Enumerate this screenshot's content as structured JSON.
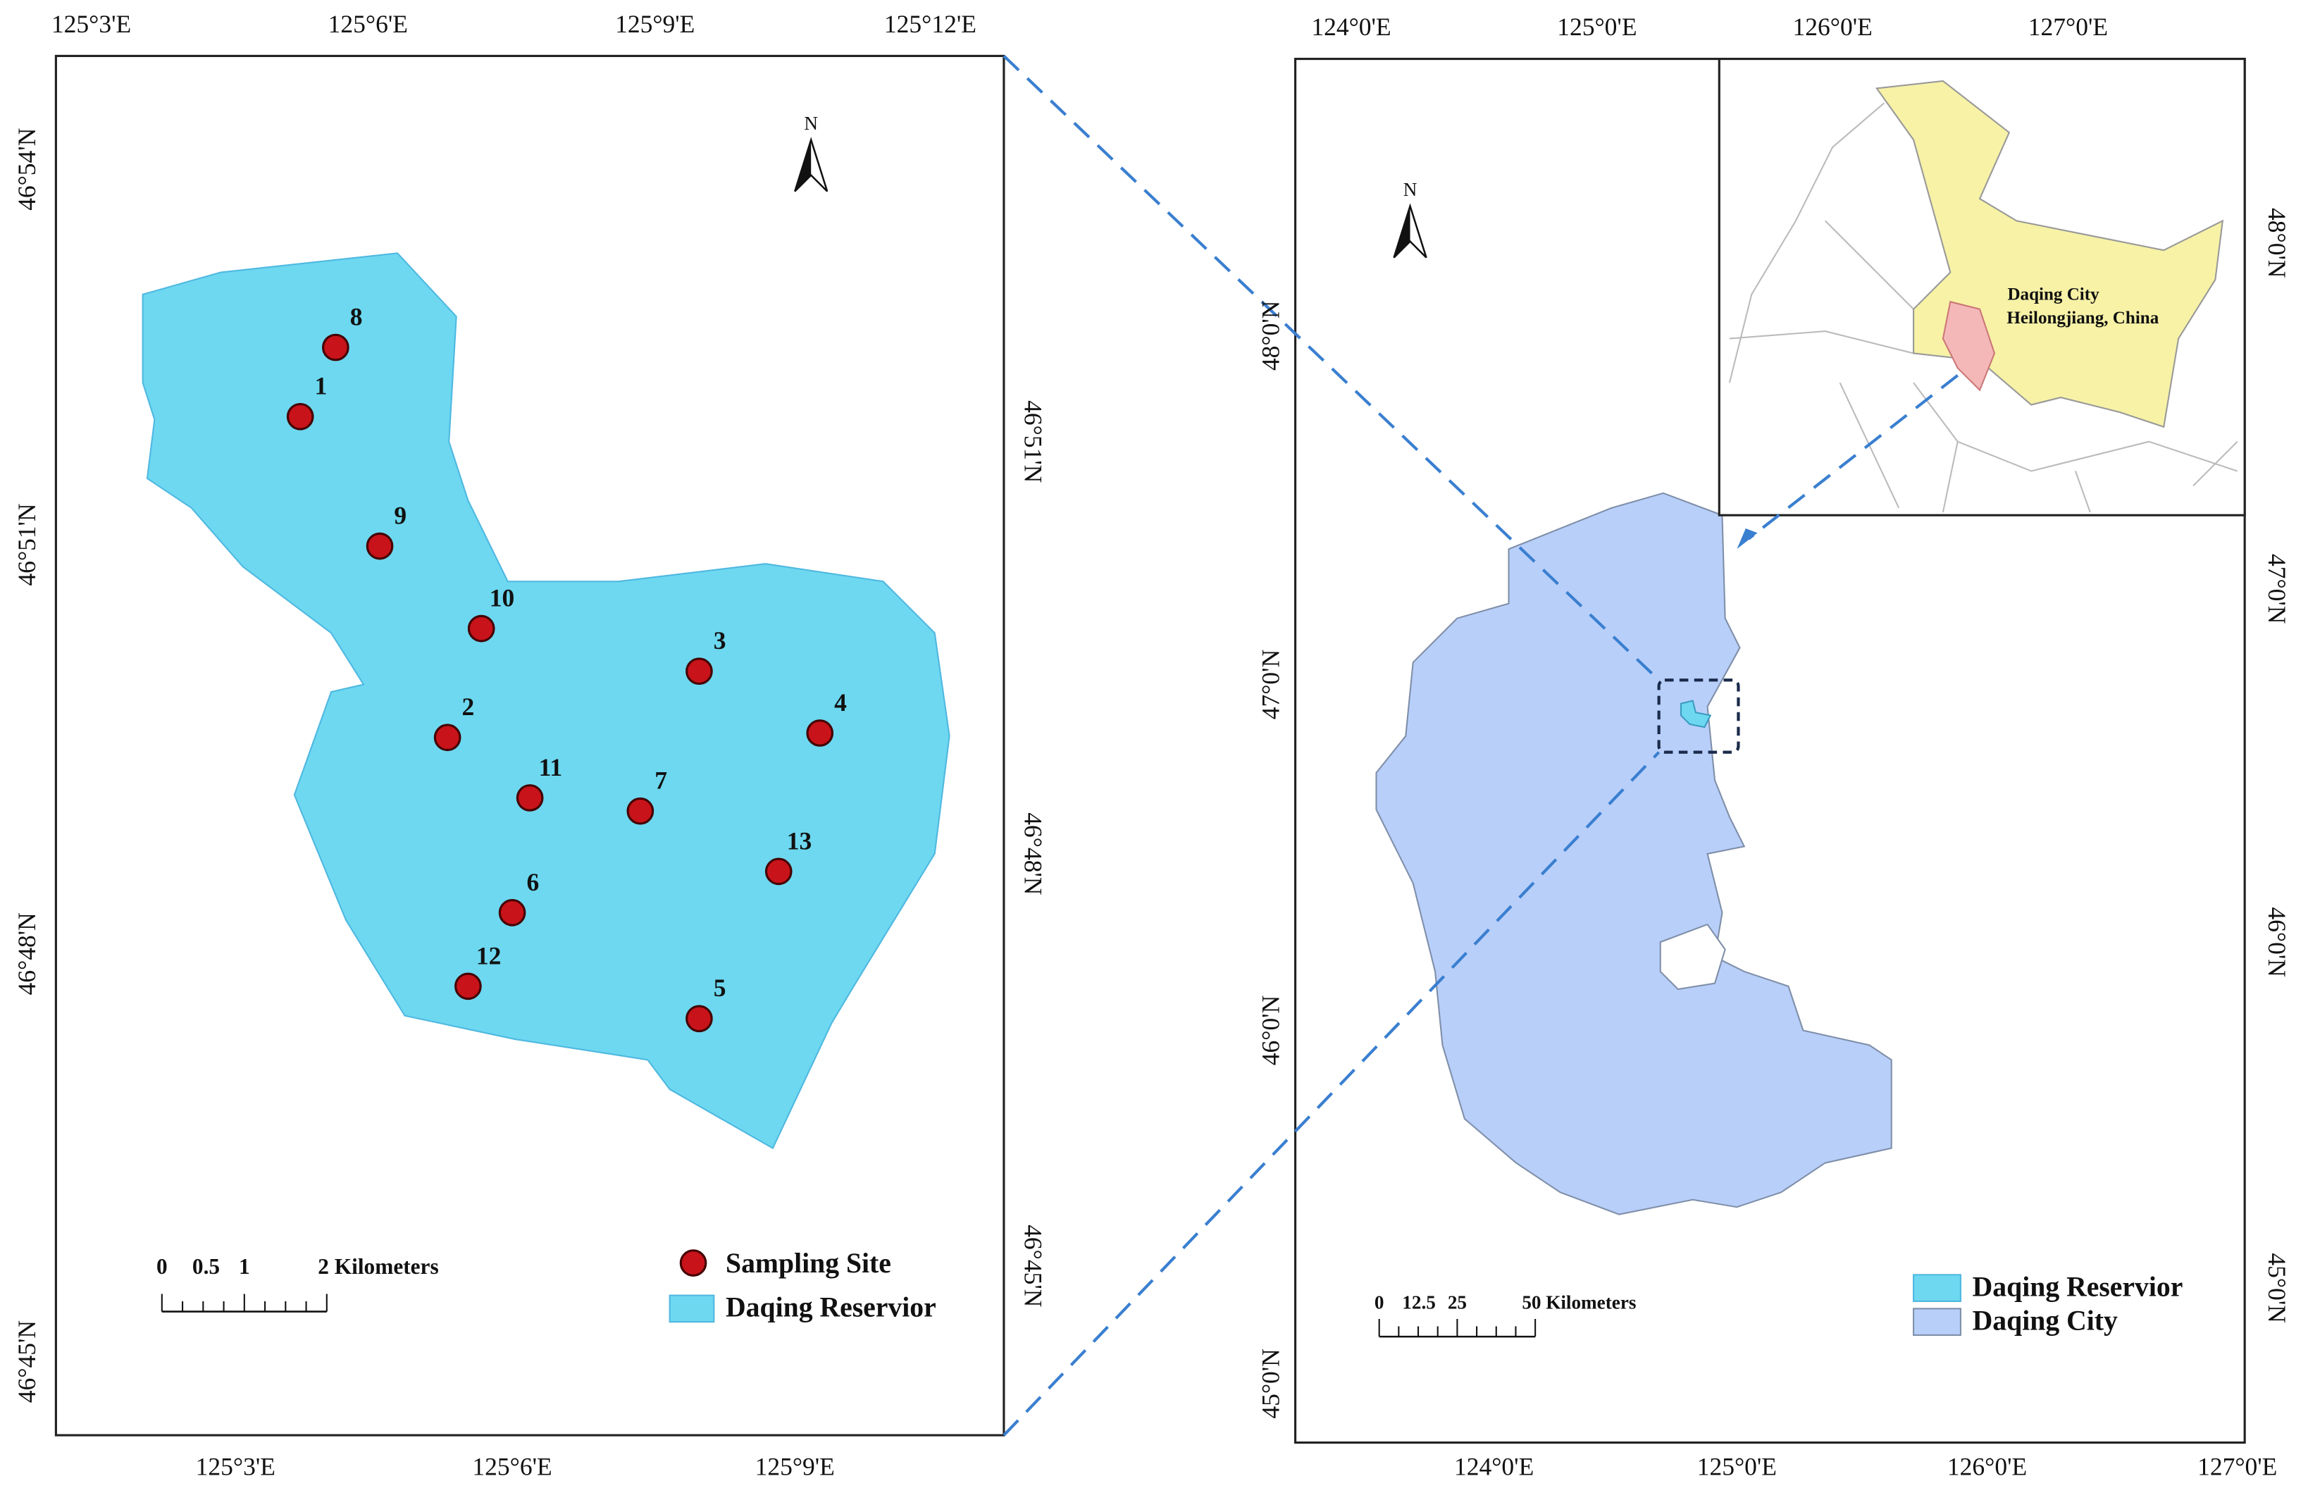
{
  "left_map": {
    "top_labels": [
      "125°3'E",
      "125°6'E",
      "125°9'E",
      "125°12'E"
    ],
    "bottom_labels": [
      "125°3'E",
      "125°6'E",
      "125°9'E"
    ],
    "left_labels": [
      "46°54'N",
      "46°51'N",
      "46°48'N",
      "46°45'N"
    ],
    "right_labels": [
      "46°51'N",
      "46°48'N",
      "46°45'N"
    ],
    "north": "N",
    "sites": [
      "1",
      "8",
      "9",
      "10",
      "3",
      "4",
      "2",
      "11",
      "7",
      "13",
      "6",
      "12",
      "5"
    ],
    "scale_labels": [
      "0",
      "0.5",
      "1",
      "2 Kilometers"
    ],
    "legend": [
      "Sampling Site",
      "Daqing Reservior"
    ]
  },
  "right_map": {
    "top_labels": [
      "124°0'E",
      "125°0'E",
      "126°0'E",
      "127°0'E"
    ],
    "bottom_labels": [
      "124°0'E",
      "125°0'E",
      "126°0'E",
      "127°0'E"
    ],
    "left_labels": [
      "48°0'N",
      "47°0'N",
      "46°0'N",
      "45°0'N"
    ],
    "right_labels": [
      "48°0'N",
      "47°0'N",
      "46°0'N",
      "45°0'N"
    ],
    "north": "N",
    "inset_label": [
      "Daqing City",
      "Heilongjiang, China"
    ],
    "scale_labels": [
      "0",
      "12.5",
      "25",
      "50 Kilometers"
    ],
    "legend": [
      "Daqing Reservior",
      "Daqing City"
    ]
  }
}
